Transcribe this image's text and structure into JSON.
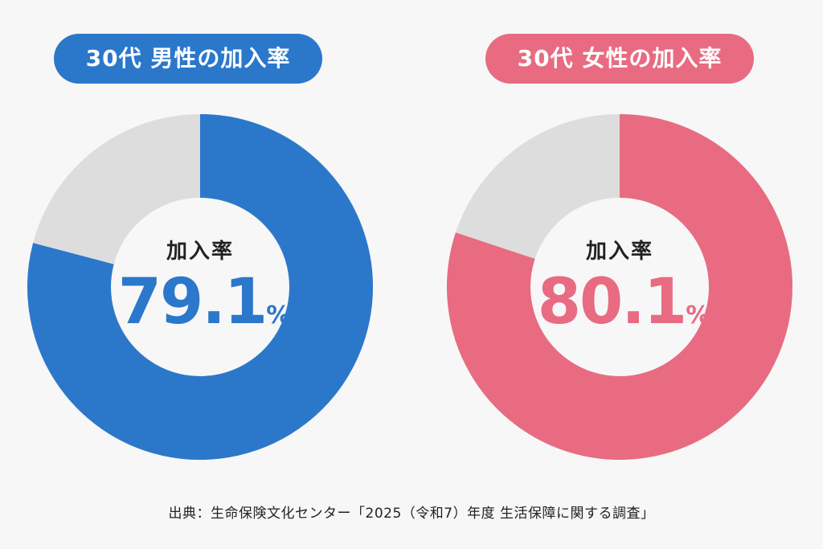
{
  "chart_data": [
    {
      "type": "pie",
      "title": "30代 男性の加入率",
      "center_label": "加入率",
      "value": 79.1,
      "unit": "%",
      "colors": {
        "value": "#2b78cb",
        "remainder": "#dddddd"
      }
    },
    {
      "type": "pie",
      "title": "30代 女性の加入率",
      "center_label": "加入率",
      "value": 80.1,
      "unit": "%",
      "colors": {
        "value": "#e86b82",
        "remainder": "#dddddd"
      }
    }
  ],
  "display": {
    "left_value": "79.1",
    "right_value": "80.1"
  },
  "source": "出典：生命保険文化センター「2025（令和7）年度 生活保障に関する調査」"
}
